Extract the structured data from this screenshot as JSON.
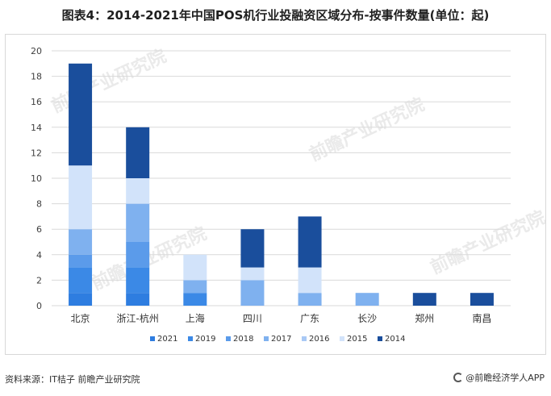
{
  "title": "图表4：2014-2021年中国POS机行业投融资区域分布-按事件数量(单位：起)",
  "source": "资料来源：IT桔子 前瞻产业研究院",
  "brand": "@前瞻经济学人APP",
  "watermark": "前瞻产业研究院",
  "colors": {
    "2021": "#2e7de0",
    "2019": "#3b89e6",
    "2018": "#5b9bea",
    "2017": "#7fb1ef",
    "2016": "#a9c9f5",
    "2015": "#d2e3fa",
    "2014": "#1a4e9c"
  },
  "chart_data": {
    "type": "bar",
    "stacked": true,
    "categories": [
      "北京",
      "浙江-杭州",
      "上海",
      "四川",
      "广东",
      "长沙",
      "郑州",
      "南昌"
    ],
    "series": [
      {
        "name": "2021",
        "values": [
          1,
          1,
          0,
          0,
          0,
          0,
          0,
          0
        ]
      },
      {
        "name": "2019",
        "values": [
          2,
          2,
          1,
          0,
          0,
          0,
          0,
          0
        ]
      },
      {
        "name": "2018",
        "values": [
          1,
          2,
          0,
          0,
          0,
          0,
          0,
          0
        ]
      },
      {
        "name": "2017",
        "values": [
          2,
          3,
          1,
          2,
          1,
          1,
          0,
          0
        ]
      },
      {
        "name": "2016",
        "values": [
          0,
          0,
          0,
          0,
          0,
          0,
          0,
          0
        ]
      },
      {
        "name": "2015",
        "values": [
          5,
          2,
          2,
          1,
          2,
          0,
          0,
          0
        ]
      },
      {
        "name": "2014",
        "values": [
          8,
          4,
          0,
          3,
          4,
          0,
          1,
          1
        ]
      }
    ],
    "yticks": [
      0,
      2,
      4,
      6,
      8,
      10,
      12,
      14,
      16,
      18,
      20
    ],
    "ylim": [
      0,
      20
    ],
    "grid": true,
    "legend_position": "bottom"
  }
}
